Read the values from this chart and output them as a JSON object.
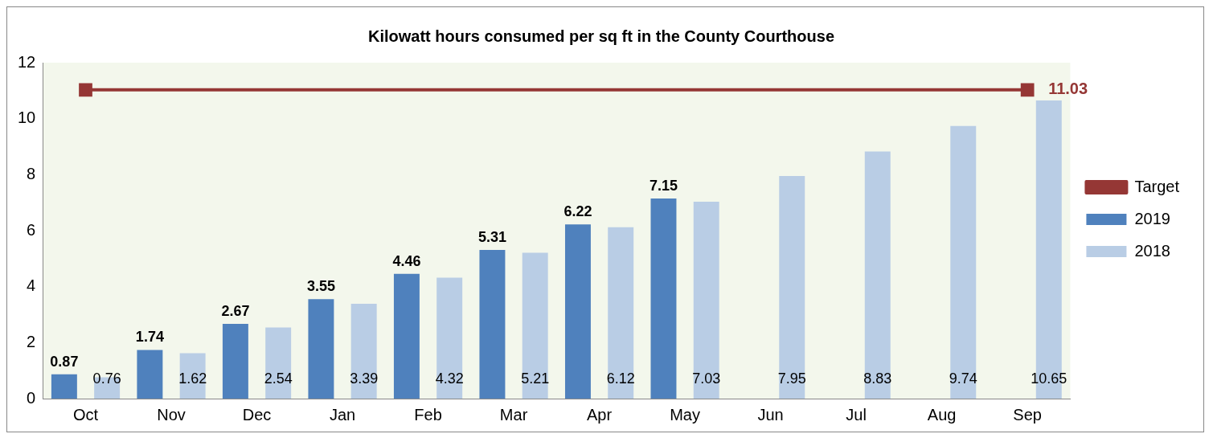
{
  "chart_data": {
    "type": "bar",
    "title": "Kilowatt hours consumed per sq ft in the County Courthouse",
    "categories": [
      "Oct",
      "Nov",
      "Dec",
      "Jan",
      "Feb",
      "Mar",
      "Apr",
      "May",
      "Jun",
      "Jul",
      "Aug",
      "Sep"
    ],
    "series": [
      {
        "name": "2019",
        "color": "#4f81bd",
        "values": [
          0.87,
          1.74,
          2.67,
          3.55,
          4.46,
          5.31,
          6.22,
          7.15,
          null,
          null,
          null,
          null
        ],
        "value_labels": [
          "0.87",
          "1.74",
          "2.67",
          "3.55",
          "4.46",
          "5.31",
          "6.22",
          "7.15",
          null,
          null,
          null,
          null
        ]
      },
      {
        "name": "2018",
        "color": "#b9cde5",
        "values": [
          0.76,
          1.62,
          2.54,
          3.39,
          4.32,
          5.21,
          6.12,
          7.03,
          7.95,
          8.83,
          9.74,
          10.65
        ],
        "value_labels": [
          "0.76",
          "1.62",
          "2.54",
          "3.39",
          "4.32",
          "5.21",
          "6.12",
          "7.03",
          "7.95",
          "8.83",
          "9.74",
          "10.65"
        ]
      },
      {
        "name": "Target",
        "type": "line",
        "color": "#953735",
        "x": [
          "Oct",
          "Sep"
        ],
        "values": [
          11.03,
          11.03
        ],
        "marker": "square",
        "value_labels": [
          null,
          "11.03"
        ]
      }
    ],
    "ylim": [
      0,
      12
    ],
    "yticks": [
      0,
      2,
      4,
      6,
      8,
      10,
      12
    ],
    "grid": false,
    "legend": "right"
  }
}
